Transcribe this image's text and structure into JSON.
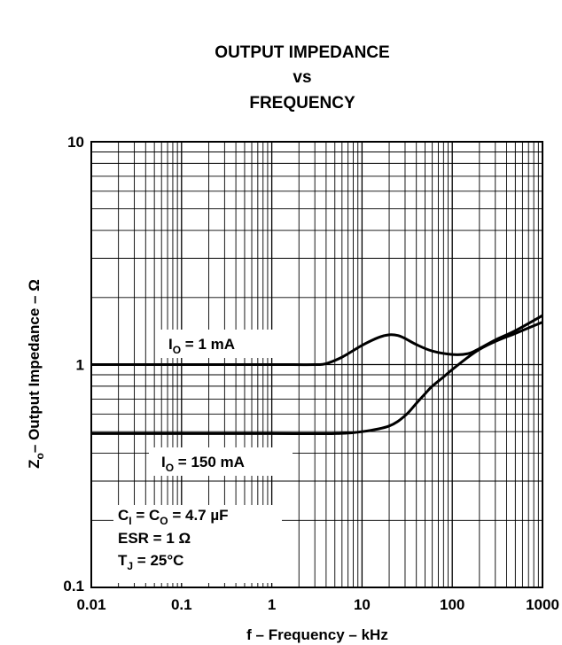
{
  "chart_data": {
    "type": "line",
    "title_lines": [
      "OUTPUT IMPEDANCE",
      "vs",
      "FREQUENCY"
    ],
    "xlabel": "f – Frequency – kHz",
    "ylabel_main": "Z",
    "ylabel_sub": "o",
    "ylabel_rest": "– Output Impedance – Ω",
    "x_scale": "log",
    "y_scale": "log",
    "xlim": [
      0.01,
      1000
    ],
    "ylim": [
      0.1,
      10
    ],
    "x_ticks": [
      0.01,
      0.1,
      1,
      10,
      100,
      1000
    ],
    "x_tick_labels": [
      "0.01",
      "0.1",
      "1",
      "10",
      "100",
      "1000"
    ],
    "y_ticks": [
      0.1,
      1,
      10
    ],
    "y_tick_labels": [
      "0.1",
      "1",
      "10"
    ],
    "grid": true,
    "series": [
      {
        "name": "IO = 1 mA",
        "label_main": "I",
        "label_sub": "O",
        "label_rest": " = 1 mA",
        "x": [
          0.01,
          0.1,
          1,
          3,
          4,
          6,
          10,
          15,
          20,
          25,
          30,
          40,
          60,
          100,
          150,
          200,
          300,
          500,
          1000
        ],
        "y": [
          1.0,
          1.0,
          1.0,
          1.0,
          1.01,
          1.08,
          1.22,
          1.32,
          1.36,
          1.35,
          1.31,
          1.23,
          1.15,
          1.11,
          1.12,
          1.18,
          1.29,
          1.42,
          1.66
        ]
      },
      {
        "name": "IO = 150 mA",
        "label_main": "I",
        "label_sub": "O",
        "label_rest": " = 150 mA",
        "x": [
          0.01,
          0.1,
          1,
          5,
          10,
          20,
          30,
          40,
          50,
          60,
          80,
          100,
          150,
          200,
          300,
          500,
          1000
        ],
        "y": [
          0.49,
          0.49,
          0.49,
          0.49,
          0.5,
          0.53,
          0.59,
          0.67,
          0.74,
          0.8,
          0.88,
          0.95,
          1.08,
          1.17,
          1.27,
          1.38,
          1.55
        ]
      }
    ],
    "conditions": {
      "line1_main": "C",
      "line1_sub1": "I",
      "line1_mid": " = C",
      "line1_sub2": "O",
      "line1_rest": " = 4.7 µF",
      "line2": "ESR = 1 Ω",
      "line3_main": "T",
      "line3_sub": "J",
      "line3_rest": " = 25°C"
    }
  }
}
